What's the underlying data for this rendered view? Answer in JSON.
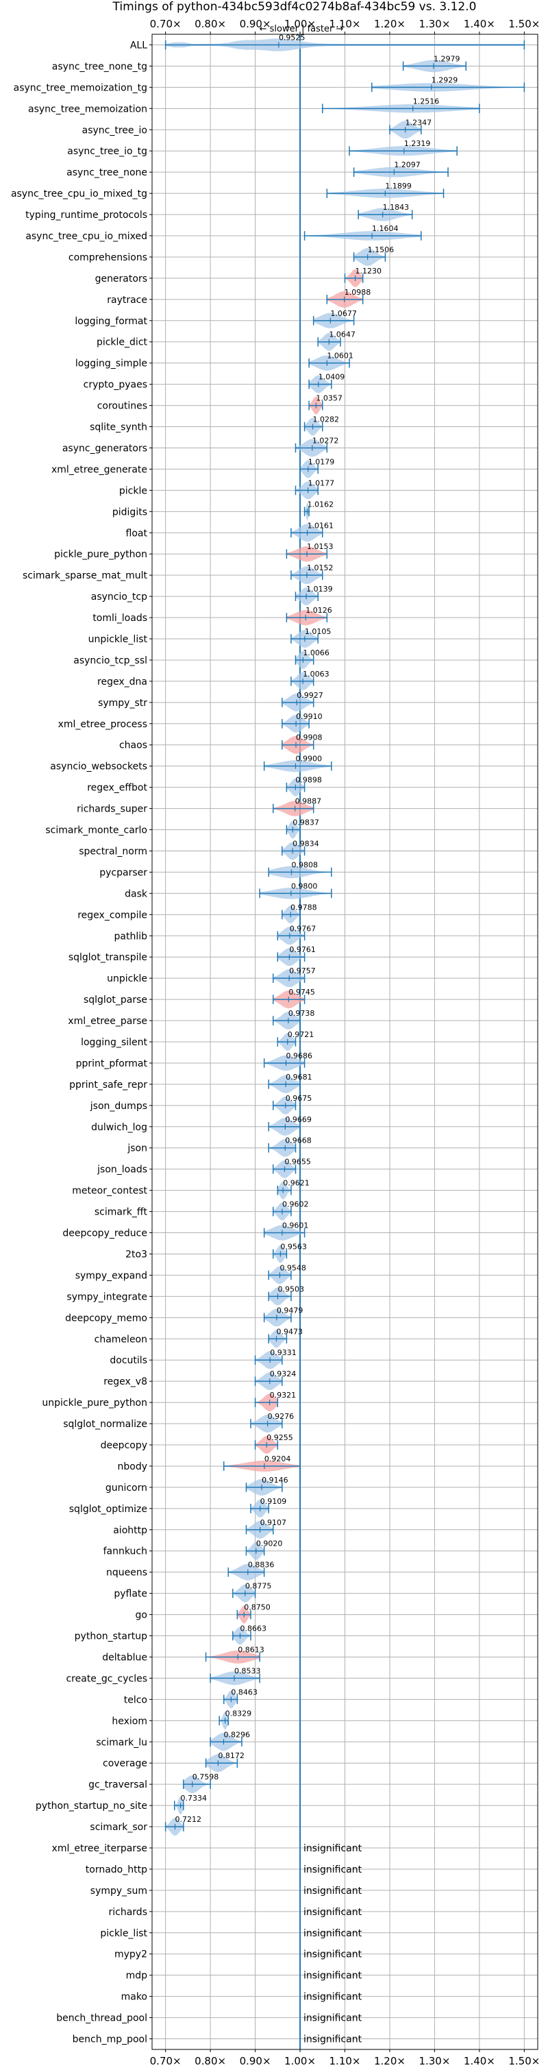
{
  "chart_data": {
    "type": "violin",
    "title": "Timings of python-434bc593df4c0274b8af-434bc59 vs. 3.12.0",
    "direction_label": "← slower | faster →",
    "xlim": [
      0.67,
      1.53
    ],
    "ticks": [
      0.7,
      0.8,
      0.9,
      1.0,
      1.1,
      1.2,
      1.3,
      1.4,
      1.5
    ],
    "tick_labels": [
      "0.70×",
      "0.80×",
      "0.90×",
      "1.00×",
      "1.10×",
      "1.20×",
      "1.30×",
      "1.40×",
      "1.50×"
    ],
    "reference": 1.0,
    "insignificant_label": "insignificant",
    "colors": {
      "faster": "#a8c8e8",
      "slower": "#f4a4a4",
      "line": "#1f77b4",
      "grid": "#b0b0b0"
    },
    "rows": [
      {
        "name": "ALL",
        "value": 0.9525,
        "min": 0.7,
        "max": 1.5,
        "shape": "all"
      },
      {
        "name": "async_tree_none_tg",
        "value": 1.2979,
        "min": 1.23,
        "max": 1.37
      },
      {
        "name": "async_tree_memoization_tg",
        "value": 1.2929,
        "min": 1.16,
        "max": 1.5
      },
      {
        "name": "async_tree_memoization",
        "value": 1.2516,
        "min": 1.05,
        "max": 1.4
      },
      {
        "name": "async_tree_io",
        "value": 1.2347,
        "min": 1.2,
        "max": 1.27
      },
      {
        "name": "async_tree_io_tg",
        "value": 1.2319,
        "min": 1.11,
        "max": 1.35
      },
      {
        "name": "async_tree_none",
        "value": 1.2097,
        "min": 1.12,
        "max": 1.33
      },
      {
        "name": "async_tree_cpu_io_mixed_tg",
        "value": 1.1899,
        "min": 1.06,
        "max": 1.32
      },
      {
        "name": "typing_runtime_protocols",
        "value": 1.1843,
        "min": 1.13,
        "max": 1.25
      },
      {
        "name": "async_tree_cpu_io_mixed",
        "value": 1.1604,
        "min": 1.01,
        "max": 1.27
      },
      {
        "name": "comprehensions",
        "value": 1.1506,
        "min": 1.12,
        "max": 1.19
      },
      {
        "name": "generators",
        "value": 1.123,
        "min": 1.1,
        "max": 1.14
      },
      {
        "name": "raytrace",
        "value": 1.0988,
        "min": 1.06,
        "max": 1.14
      },
      {
        "name": "logging_format",
        "value": 1.0677,
        "min": 1.03,
        "max": 1.12
      },
      {
        "name": "pickle_dict",
        "value": 1.0647,
        "min": 1.04,
        "max": 1.09
      },
      {
        "name": "logging_simple",
        "value": 1.0601,
        "min": 1.02,
        "max": 1.11
      },
      {
        "name": "crypto_pyaes",
        "value": 1.0409,
        "min": 1.02,
        "max": 1.07
      },
      {
        "name": "coroutines",
        "value": 1.0357,
        "min": 1.02,
        "max": 1.05
      },
      {
        "name": "sqlite_synth",
        "value": 1.0282,
        "min": 1.01,
        "max": 1.05
      },
      {
        "name": "async_generators",
        "value": 1.0272,
        "min": 0.99,
        "max": 1.06
      },
      {
        "name": "xml_etree_generate",
        "value": 1.0179,
        "min": 1.0,
        "max": 1.04
      },
      {
        "name": "pickle",
        "value": 1.0177,
        "min": 0.99,
        "max": 1.04
      },
      {
        "name": "pidigits",
        "value": 1.0162,
        "min": 1.01,
        "max": 1.02
      },
      {
        "name": "float",
        "value": 1.0161,
        "min": 0.98,
        "max": 1.05
      },
      {
        "name": "pickle_pure_python",
        "value": 1.0153,
        "min": 0.97,
        "max": 1.06
      },
      {
        "name": "scimark_sparse_mat_mult",
        "value": 1.0152,
        "min": 0.98,
        "max": 1.05
      },
      {
        "name": "asyncio_tcp",
        "value": 1.0139,
        "min": 0.99,
        "max": 1.04
      },
      {
        "name": "tomli_loads",
        "value": 1.0126,
        "min": 0.97,
        "max": 1.06
      },
      {
        "name": "unpickle_list",
        "value": 1.0105,
        "min": 0.98,
        "max": 1.04
      },
      {
        "name": "asyncio_tcp_ssl",
        "value": 1.0066,
        "min": 0.99,
        "max": 1.03
      },
      {
        "name": "regex_dna",
        "value": 1.0063,
        "min": 0.98,
        "max": 1.03
      },
      {
        "name": "sympy_str",
        "value": 0.9927,
        "min": 0.96,
        "max": 1.03
      },
      {
        "name": "xml_etree_process",
        "value": 0.991,
        "min": 0.96,
        "max": 1.02
      },
      {
        "name": "chaos",
        "value": 0.9908,
        "min": 0.96,
        "max": 1.03
      },
      {
        "name": "asyncio_websockets",
        "value": 0.99,
        "min": 0.92,
        "max": 1.07
      },
      {
        "name": "regex_effbot",
        "value": 0.9898,
        "min": 0.97,
        "max": 1.01
      },
      {
        "name": "richards_super",
        "value": 0.9887,
        "min": 0.94,
        "max": 1.03
      },
      {
        "name": "scimark_monte_carlo",
        "value": 0.9837,
        "min": 0.97,
        "max": 1.0
      },
      {
        "name": "spectral_norm",
        "value": 0.9834,
        "min": 0.96,
        "max": 1.01
      },
      {
        "name": "pycparser",
        "value": 0.9808,
        "min": 0.93,
        "max": 1.07
      },
      {
        "name": "dask",
        "value": 0.98,
        "min": 0.91,
        "max": 1.07
      },
      {
        "name": "regex_compile",
        "value": 0.9788,
        "min": 0.96,
        "max": 1.0
      },
      {
        "name": "pathlib",
        "value": 0.9767,
        "min": 0.95,
        "max": 1.01
      },
      {
        "name": "sqlglot_transpile",
        "value": 0.9761,
        "min": 0.95,
        "max": 1.01
      },
      {
        "name": "unpickle",
        "value": 0.9757,
        "min": 0.94,
        "max": 1.01
      },
      {
        "name": "sqlglot_parse",
        "value": 0.9745,
        "min": 0.94,
        "max": 1.01
      },
      {
        "name": "xml_etree_parse",
        "value": 0.9738,
        "min": 0.94,
        "max": 1.0
      },
      {
        "name": "logging_silent",
        "value": 0.9721,
        "min": 0.95,
        "max": 0.99
      },
      {
        "name": "pprint_pformat",
        "value": 0.9686,
        "min": 0.92,
        "max": 1.01
      },
      {
        "name": "pprint_safe_repr",
        "value": 0.9681,
        "min": 0.93,
        "max": 1.0
      },
      {
        "name": "json_dumps",
        "value": 0.9675,
        "min": 0.94,
        "max": 0.99
      },
      {
        "name": "dulwich_log",
        "value": 0.9669,
        "min": 0.93,
        "max": 1.0
      },
      {
        "name": "json",
        "value": 0.9668,
        "min": 0.93,
        "max": 0.99
      },
      {
        "name": "json_loads",
        "value": 0.9655,
        "min": 0.94,
        "max": 0.99
      },
      {
        "name": "meteor_contest",
        "value": 0.9621,
        "min": 0.95,
        "max": 0.98
      },
      {
        "name": "scimark_fft",
        "value": 0.9602,
        "min": 0.94,
        "max": 0.98
      },
      {
        "name": "deepcopy_reduce",
        "value": 0.9601,
        "min": 0.92,
        "max": 1.01
      },
      {
        "name": "2to3",
        "value": 0.9563,
        "min": 0.94,
        "max": 0.97
      },
      {
        "name": "sympy_expand",
        "value": 0.9548,
        "min": 0.93,
        "max": 0.98
      },
      {
        "name": "sympy_integrate",
        "value": 0.9503,
        "min": 0.93,
        "max": 0.98
      },
      {
        "name": "deepcopy_memo",
        "value": 0.9479,
        "min": 0.92,
        "max": 0.98
      },
      {
        "name": "chameleon",
        "value": 0.9473,
        "min": 0.93,
        "max": 0.97
      },
      {
        "name": "docutils",
        "value": 0.9331,
        "min": 0.9,
        "max": 0.96
      },
      {
        "name": "regex_v8",
        "value": 0.9324,
        "min": 0.9,
        "max": 0.96
      },
      {
        "name": "unpickle_pure_python",
        "value": 0.9321,
        "min": 0.9,
        "max": 0.95
      },
      {
        "name": "sqlglot_normalize",
        "value": 0.9276,
        "min": 0.89,
        "max": 0.96
      },
      {
        "name": "deepcopy",
        "value": 0.9255,
        "min": 0.9,
        "max": 0.95
      },
      {
        "name": "nbody",
        "value": 0.9204,
        "min": 0.83,
        "max": 1.0
      },
      {
        "name": "gunicorn",
        "value": 0.9146,
        "min": 0.88,
        "max": 0.96
      },
      {
        "name": "sqlglot_optimize",
        "value": 0.9109,
        "min": 0.89,
        "max": 0.93
      },
      {
        "name": "aiohttp",
        "value": 0.9107,
        "min": 0.88,
        "max": 0.94
      },
      {
        "name": "fannkuch",
        "value": 0.902,
        "min": 0.88,
        "max": 0.92
      },
      {
        "name": "nqueens",
        "value": 0.8836,
        "min": 0.84,
        "max": 0.92
      },
      {
        "name": "pyflate",
        "value": 0.8775,
        "min": 0.85,
        "max": 0.9
      },
      {
        "name": "go",
        "value": 0.875,
        "min": 0.86,
        "max": 0.89
      },
      {
        "name": "python_startup",
        "value": 0.8663,
        "min": 0.85,
        "max": 0.89
      },
      {
        "name": "deltablue",
        "value": 0.8613,
        "min": 0.79,
        "max": 0.91
      },
      {
        "name": "create_gc_cycles",
        "value": 0.8533,
        "min": 0.8,
        "max": 0.91
      },
      {
        "name": "telco",
        "value": 0.8463,
        "min": 0.83,
        "max": 0.86
      },
      {
        "name": "hexiom",
        "value": 0.8329,
        "min": 0.82,
        "max": 0.84
      },
      {
        "name": "scimark_lu",
        "value": 0.8296,
        "min": 0.8,
        "max": 0.87
      },
      {
        "name": "coverage",
        "value": 0.8172,
        "min": 0.79,
        "max": 0.86
      },
      {
        "name": "gc_traversal",
        "value": 0.7598,
        "min": 0.74,
        "max": 0.8
      },
      {
        "name": "python_startup_no_site",
        "value": 0.7334,
        "min": 0.72,
        "max": 0.74
      },
      {
        "name": "scimark_sor",
        "value": 0.7212,
        "min": 0.7,
        "max": 0.74
      },
      {
        "name": "xml_etree_iterparse",
        "value": null
      },
      {
        "name": "tornado_http",
        "value": null
      },
      {
        "name": "sympy_sum",
        "value": null
      },
      {
        "name": "richards",
        "value": null
      },
      {
        "name": "pickle_list",
        "value": null
      },
      {
        "name": "mypy2",
        "value": null
      },
      {
        "name": "mdp",
        "value": null
      },
      {
        "name": "mako",
        "value": null
      },
      {
        "name": "bench_thread_pool",
        "value": null
      },
      {
        "name": "bench_mp_pool",
        "value": null
      }
    ]
  }
}
